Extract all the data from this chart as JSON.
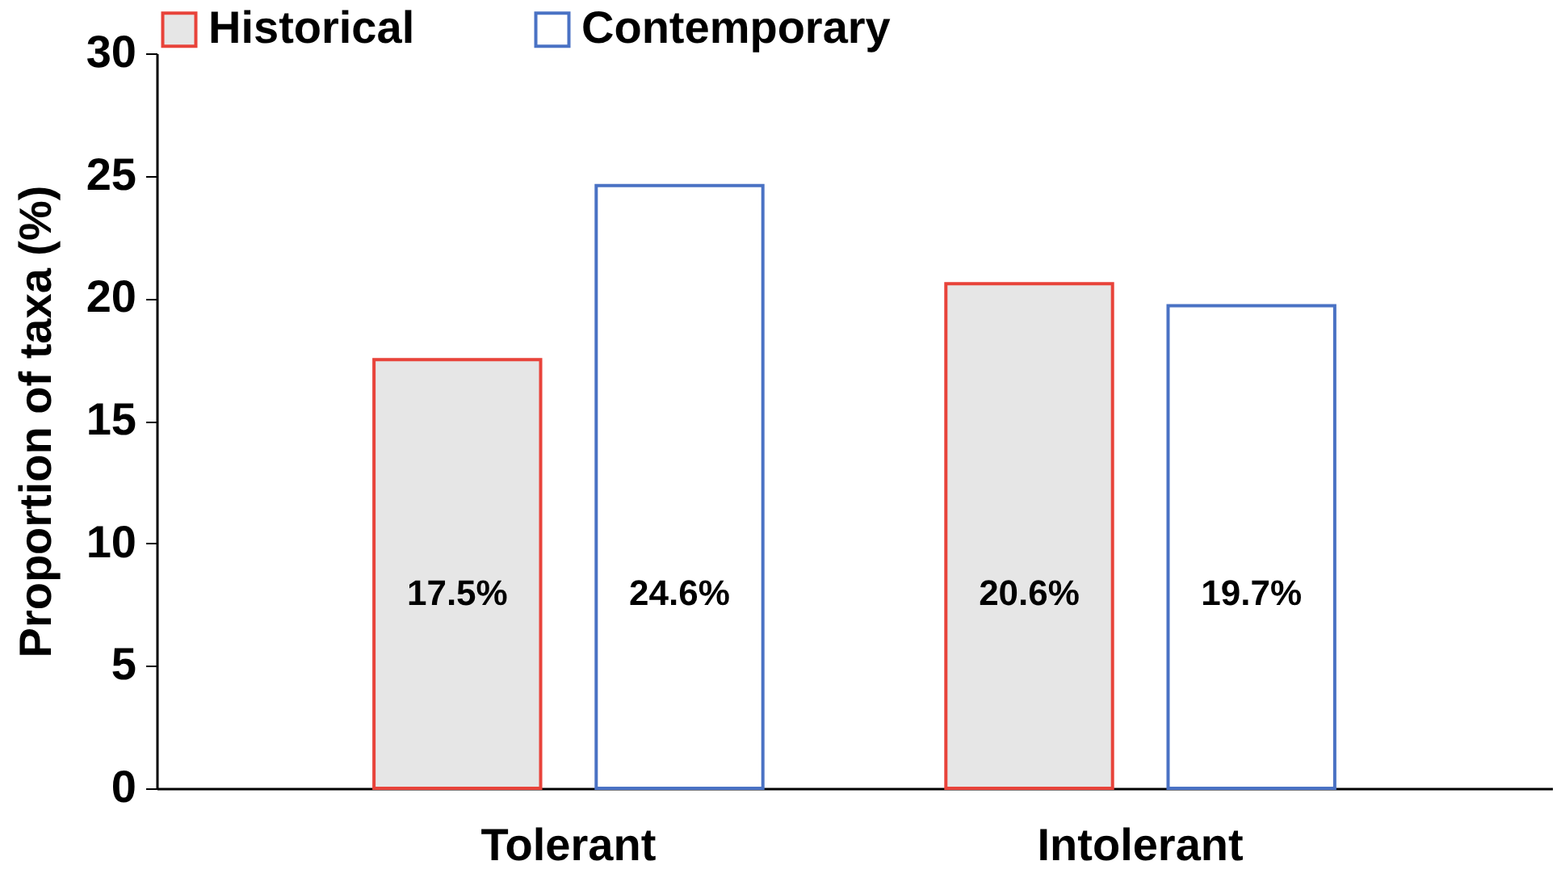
{
  "chart_data": {
    "type": "bar",
    "ylabel": "Proportion of taxa (%)",
    "categories": [
      "Tolerant",
      "Intolerant"
    ],
    "series": [
      {
        "name": "Historical",
        "color": "#e8433a",
        "values": [
          17.5,
          20.6
        ],
        "value_labels": [
          "17.5%",
          "20.6%"
        ]
      },
      {
        "name": "Contemporary",
        "color": "#4a72c4",
        "values": [
          24.6,
          19.7
        ],
        "value_labels": [
          "24.6%",
          "19.7%"
        ]
      }
    ],
    "ylim": [
      0,
      30
    ],
    "yticks": [
      0,
      5,
      10,
      15,
      20,
      25,
      30
    ],
    "grid": false,
    "legend": "top"
  }
}
